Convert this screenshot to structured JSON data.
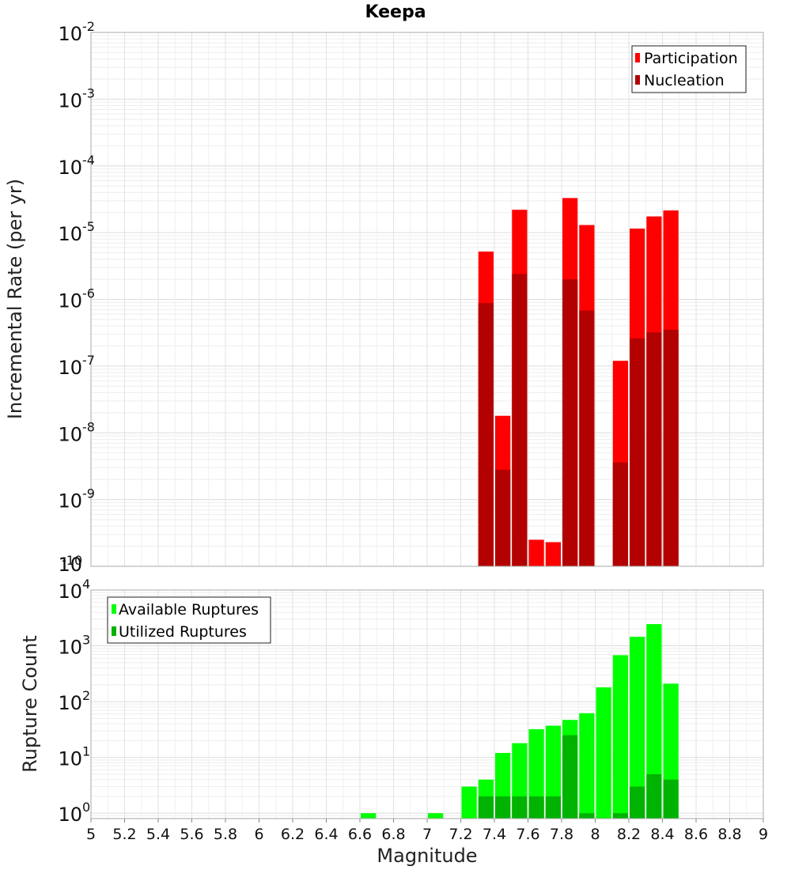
{
  "chart_data": [
    {
      "type": "bar",
      "title": "Keepa",
      "xlabel": "",
      "ylabel": "Incremental Rate (per yr)",
      "yscale": "log",
      "ylim": [
        1e-10,
        0.01
      ],
      "xlim": [
        5,
        9
      ],
      "y_tick_exponents": [
        "-2",
        "-3",
        "-4",
        "-5",
        "-6",
        "-7",
        "-8",
        "-9",
        "-10"
      ],
      "grid": true,
      "legend_position": "top-right",
      "bar_width": 0.1,
      "series": [
        {
          "name": "Participation",
          "color": "#ff0000",
          "x": [
            7.35,
            7.45,
            7.55,
            7.65,
            7.75,
            7.85,
            7.95,
            8.15,
            8.25,
            8.35,
            8.45
          ],
          "values": [
            5.2e-06,
            1.8e-08,
            2.2e-05,
            2.5e-10,
            2.3e-10,
            3.3e-05,
            1.3e-05,
            1.2e-07,
            1.15e-05,
            1.75e-05,
            2.15e-05
          ]
        },
        {
          "name": "Nucleation",
          "color": "#b30000",
          "x": [
            7.35,
            7.45,
            7.55,
            7.85,
            7.95,
            8.15,
            8.25,
            8.35,
            8.45
          ],
          "values": [
            8.8e-07,
            2.8e-09,
            2.4e-06,
            2e-06,
            6.8e-07,
            3.6e-09,
            2.6e-07,
            3.2e-07,
            3.5e-07
          ]
        }
      ]
    },
    {
      "type": "bar",
      "title": "",
      "xlabel": "Magnitude",
      "ylabel": "Rupture Count",
      "yscale": "log",
      "ylim": [
        0.8,
        10000
      ],
      "xlim": [
        5,
        9
      ],
      "y_tick_exponents": [
        "4",
        "3",
        "2",
        "1",
        "0"
      ],
      "x_tick_labels": [
        "5",
        "5.2",
        "5.4",
        "5.6",
        "5.8",
        "6",
        "6.2",
        "6.4",
        "6.6",
        "6.8",
        "7",
        "7.2",
        "7.4",
        "7.6",
        "7.8",
        "8",
        "8.2",
        "8.4",
        "8.6",
        "8.8",
        "9"
      ],
      "grid": true,
      "legend_position": "top-left",
      "bar_width": 0.1,
      "series": [
        {
          "name": "Available Ruptures",
          "color": "#00ff00",
          "x": [
            6.65,
            7.05,
            7.25,
            7.35,
            7.45,
            7.55,
            7.65,
            7.75,
            7.85,
            7.95,
            8.05,
            8.15,
            8.25,
            8.35,
            8.45
          ],
          "values": [
            1,
            1,
            3,
            4,
            12,
            18,
            32,
            37,
            47,
            62,
            180,
            680,
            1450,
            2450,
            210
          ]
        },
        {
          "name": "Utilized Ruptures",
          "color": "#00b300",
          "x": [
            7.35,
            7.45,
            7.55,
            7.65,
            7.75,
            7.85,
            7.95,
            8.15,
            8.25,
            8.35,
            8.45
          ],
          "values": [
            2,
            2,
            2,
            2,
            2,
            25,
            1,
            1,
            3,
            5,
            4
          ]
        }
      ]
    }
  ]
}
